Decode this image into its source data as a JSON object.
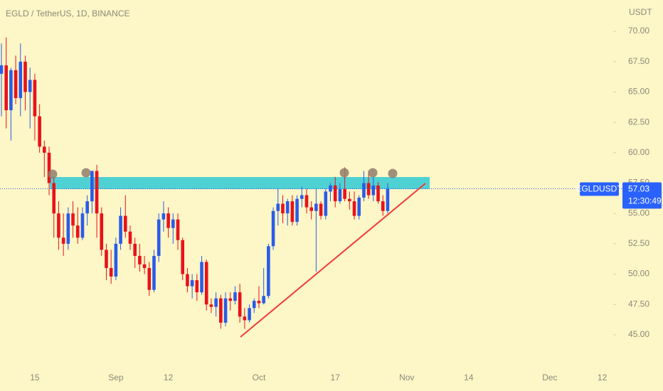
{
  "chart_data": {
    "type": "candlestick",
    "title": "EGLD / TetherUS, 1D, BINANCE",
    "y_unit": "USDT",
    "symbol": "EGLDUSDT",
    "countdown": "12:30:49",
    "up_color": "#2a5ce8",
    "down_color": "#e8121a",
    "categories": [
      null,
      null,
      null,
      null,
      null,
      null,
      null,
      "15",
      null,
      null,
      null,
      null,
      null,
      null,
      null,
      null,
      null,
      null,
      null,
      null,
      null,
      null,
      null,
      null,
      "Sep",
      null,
      null,
      null,
      null,
      null,
      null,
      null,
      null,
      null,
      null,
      "12",
      null,
      null,
      null,
      null,
      null,
      null,
      null,
      null,
      null,
      null,
      null,
      null,
      null,
      null,
      null,
      null,
      null,
      null,
      "Oct",
      null,
      null,
      null,
      null,
      null,
      null,
      null,
      null,
      null,
      null,
      null,
      null,
      null,
      null,
      null,
      "17",
      null,
      null,
      null,
      null,
      null,
      null,
      null,
      null,
      null,
      null,
      null,
      null,
      null,
      null,
      "Nov",
      null,
      null,
      null,
      null,
      null,
      null,
      null,
      null,
      null,
      null,
      null,
      null,
      "14",
      null,
      null,
      null,
      null,
      null,
      null,
      null,
      null,
      null,
      null,
      null,
      null,
      null,
      null,
      null,
      null,
      "Dec",
      null,
      null,
      null,
      null,
      null,
      null,
      null,
      null,
      null,
      null,
      "12",
      null,
      null
    ],
    "open": [
      66.5,
      67.2,
      63.5,
      66.8,
      64.5,
      67.5,
      65,
      66,
      63,
      60.5,
      60,
      57.5,
      55,
      53,
      52.5,
      55,
      54,
      53,
      55,
      56,
      58.5,
      55,
      52,
      50.5,
      49.8,
      52.5,
      54.8,
      53.5,
      52.5,
      51.5,
      50.8,
      50.5,
      48.7,
      51.5,
      54.5,
      55,
      53.8,
      54.5,
      52.8,
      50,
      49,
      49.5,
      48.5,
      51,
      47.5,
      47.3,
      48,
      46,
      48,
      47.8,
      48.5,
      46.5,
      46.2,
      47.2,
      47.8,
      47.6,
      48.2,
      52.3,
      55.2,
      55.8,
      55,
      56,
      54.3,
      56.2,
      56.5,
      55.5,
      55.2,
      55.8,
      54.8,
      56.8,
      57.3,
      56,
      57,
      56.2,
      56,
      54.8,
      56.3,
      57.5,
      56.5,
      57.3,
      56,
      55.2,
      null,
      null,
      null,
      null,
      null,
      null,
      null,
      null,
      null,
      null,
      null,
      null,
      null,
      null,
      null,
      null,
      null,
      null,
      null,
      null,
      null,
      null,
      null,
      null,
      null,
      null,
      null,
      null,
      null,
      null,
      null,
      null,
      null,
      null,
      null,
      null,
      null,
      null,
      null,
      null,
      null,
      null,
      null,
      null,
      null,
      null,
      null
    ],
    "high": [
      69,
      69.5,
      67,
      68,
      69,
      68,
      67,
      66.5,
      64,
      61,
      60.5,
      58,
      56,
      55,
      55.5,
      56,
      55.5,
      55.5,
      56.5,
      58.5,
      59,
      55.5,
      52.5,
      52,
      53,
      55.5,
      56.5,
      54,
      53,
      52.5,
      51.5,
      51,
      52,
      55,
      56,
      55.5,
      55,
      55,
      53,
      50.5,
      50,
      50,
      51.5,
      51.2,
      48,
      48.5,
      48.3,
      48.5,
      48.5,
      49,
      49.2,
      47.2,
      47.5,
      48,
      49,
      50.5,
      52.5,
      55.5,
      57,
      56.5,
      56.2,
      56.5,
      56.5,
      57.2,
      57,
      56,
      57,
      56,
      57,
      57.5,
      58,
      57.5,
      58.8,
      56.8,
      56.8,
      56.5,
      58.5,
      58.5,
      58,
      57.6,
      56.5,
      57.5,
      null,
      null,
      null,
      null,
      null,
      null,
      null,
      null,
      null,
      null,
      null,
      null,
      null,
      null,
      null,
      null,
      null,
      null,
      null,
      null,
      null,
      null,
      null,
      null,
      null,
      null,
      null,
      null,
      null,
      null,
      null,
      null,
      null,
      null,
      null,
      null,
      null,
      null,
      null,
      null,
      null,
      null,
      null,
      null,
      null,
      null,
      null
    ],
    "low": [
      63,
      62,
      61,
      64,
      63,
      63.5,
      62,
      61,
      60,
      58,
      56.5,
      53,
      52,
      51.5,
      52,
      53,
      52.5,
      52.8,
      54,
      55,
      53,
      51.5,
      49.5,
      49.2,
      49.5,
      52,
      53,
      52,
      50.5,
      50.2,
      50,
      48.2,
      48.5,
      51,
      53.5,
      53,
      52.5,
      52,
      49.5,
      48.5,
      48,
      47.8,
      48.3,
      47,
      46.8,
      46.5,
      45.5,
      45.7,
      47,
      47.5,
      46,
      45.5,
      46,
      46.8,
      47.2,
      47.5,
      48,
      52,
      54,
      54.2,
      54,
      54,
      54,
      55.5,
      55,
      54.5,
      50.2,
      54.5,
      54.5,
      56,
      55.5,
      55.8,
      56,
      55.3,
      54.5,
      54.5,
      56,
      56.2,
      56,
      55.8,
      54.8,
      55,
      null,
      null,
      null,
      null,
      null,
      null,
      null,
      null,
      null,
      null,
      null,
      null,
      null,
      null,
      null,
      null,
      null,
      null,
      null,
      null,
      null,
      null,
      null,
      null,
      null,
      null,
      null,
      null,
      null,
      null,
      null,
      null,
      null,
      null,
      null,
      null,
      null,
      null,
      null,
      null,
      null,
      null,
      null,
      null,
      null,
      null,
      null
    ],
    "close": [
      67.2,
      63.5,
      66.8,
      64.5,
      67.5,
      65,
      66,
      63,
      60.5,
      60,
      57.5,
      55,
      53,
      52.5,
      55,
      54,
      53,
      55,
      56,
      58.5,
      55,
      52,
      50.5,
      49.8,
      52.5,
      54.8,
      53.5,
      52.5,
      51.5,
      50.8,
      50.5,
      48.7,
      51.5,
      54.5,
      55,
      53.8,
      54.5,
      52.8,
      50,
      49,
      49.5,
      48.5,
      51,
      47.5,
      47.3,
      48,
      46,
      48,
      47.8,
      48.5,
      46.5,
      46.2,
      47.2,
      47.8,
      47.6,
      48.2,
      52.3,
      55.2,
      55.8,
      55,
      56,
      54.3,
      56.2,
      56.5,
      55.5,
      55.2,
      55.8,
      54.8,
      56.8,
      57.3,
      56,
      57,
      56.2,
      56,
      54.8,
      56.3,
      57.5,
      56.5,
      57.3,
      56,
      55.2,
      57.03,
      null,
      null,
      null,
      null,
      null,
      null,
      null,
      null,
      null,
      null,
      null,
      null,
      null,
      null,
      null,
      null,
      null,
      null,
      null,
      null,
      null,
      null,
      null,
      null,
      null,
      null,
      null,
      null,
      null,
      null,
      null,
      null,
      null,
      null,
      null,
      null,
      null,
      null,
      null,
      null,
      null,
      null,
      null,
      null,
      null,
      null,
      null
    ],
    "ylim": [
      42.42,
      72.58
    ],
    "yticks": [
      {
        "value": 45,
        "label": "45.00"
      },
      {
        "value": 47.5,
        "label": "47.50"
      },
      {
        "value": 50,
        "label": "50.00"
      },
      {
        "value": 52.5,
        "label": "52.50"
      },
      {
        "value": 55,
        "label": "55.00"
      },
      {
        "value": 57.5,
        "label": "57.50"
      },
      {
        "value": 60,
        "label": "60.00"
      },
      {
        "value": 62.5,
        "label": "62.50"
      },
      {
        "value": 65,
        "label": "65.00"
      },
      {
        "value": 67.5,
        "label": "67.50"
      },
      {
        "value": 70,
        "label": "70.00"
      }
    ]
  }
}
